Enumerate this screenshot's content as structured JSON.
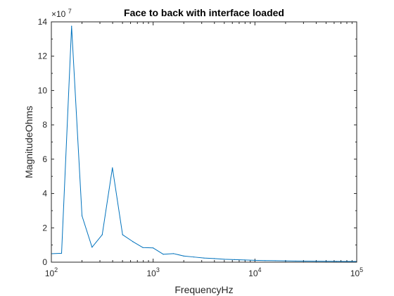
{
  "chart_data": {
    "type": "line",
    "title": "Face to back with interface loaded",
    "xlabel": "FrequencyHz",
    "ylabel": "MagnitudeOhms",
    "xscale": "log",
    "xlim": [
      100,
      100000
    ],
    "ylim": [
      0,
      140000000
    ],
    "exponent_label": {
      "base": "×10",
      "power": "7"
    },
    "x_ticks": [
      100,
      1000,
      10000,
      100000
    ],
    "x_tick_labels": [
      {
        "base": "10",
        "exp": "2"
      },
      {
        "base": "10",
        "exp": "3"
      },
      {
        "base": "10",
        "exp": "4"
      },
      {
        "base": "10",
        "exp": "5"
      }
    ],
    "y_ticks": [
      0,
      20000000,
      40000000,
      60000000,
      80000000,
      100000000,
      120000000,
      140000000
    ],
    "y_tick_labels": [
      "0",
      "2",
      "4",
      "6",
      "8",
      "10",
      "12",
      "14"
    ],
    "grid": false,
    "box": true,
    "line_color": "#0072bd",
    "series": [
      {
        "x": [
          100,
          126,
          158,
          200,
          251,
          316,
          398,
          501,
          631,
          794,
          1000,
          1259,
          1585,
          1995,
          2512,
          3162,
          3981,
          5012,
          6310,
          7943,
          10000,
          12589,
          15849,
          19953,
          25119,
          31623,
          39811,
          50119,
          63096,
          79433,
          100000
        ],
        "y": [
          4900000,
          5200000,
          137500000,
          27000000,
          8700000,
          16000000,
          55000000,
          16000000,
          12000000,
          8500000,
          8300000,
          4600000,
          5000000,
          3600000,
          3000000,
          2400000,
          2100000,
          1700000,
          1500000,
          1300000,
          1100000,
          950000,
          850000,
          750000,
          650000,
          600000,
          550000,
          500000,
          450000,
          420000,
          400000
        ]
      }
    ]
  }
}
